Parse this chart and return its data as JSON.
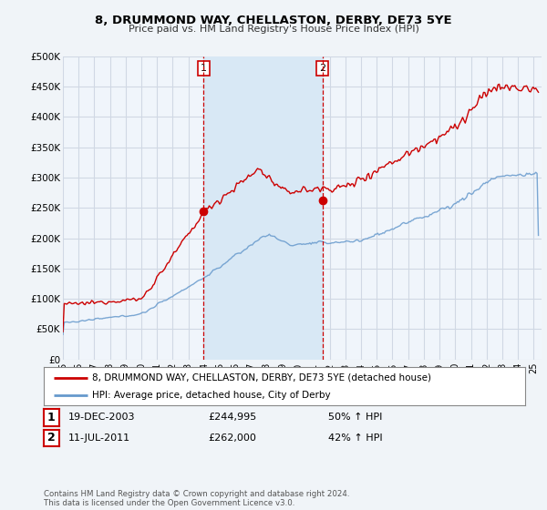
{
  "title": "8, DRUMMOND WAY, CHELLASTON, DERBY, DE73 5YE",
  "subtitle": "Price paid vs. HM Land Registry's House Price Index (HPI)",
  "ylabel_ticks": [
    "£0",
    "£50K",
    "£100K",
    "£150K",
    "£200K",
    "£250K",
    "£300K",
    "£350K",
    "£400K",
    "£450K",
    "£500K"
  ],
  "ytick_values": [
    0,
    50000,
    100000,
    150000,
    200000,
    250000,
    300000,
    350000,
    400000,
    450000,
    500000
  ],
  "ylim": [
    0,
    500000
  ],
  "background_color": "#f0f4f8",
  "plot_bg_color": "#f0f5fb",
  "grid_color": "#d0d8e4",
  "red_line_color": "#cc0000",
  "blue_line_color": "#6699cc",
  "span_color": "#d8e8f5",
  "marker1_date": 2003.97,
  "marker1_value": 244995,
  "marker1_label": "1",
  "marker2_date": 2011.54,
  "marker2_value": 262000,
  "marker2_label": "2",
  "legend_red_label": "8, DRUMMOND WAY, CHELLASTON, DERBY, DE73 5YE (detached house)",
  "legend_blue_label": "HPI: Average price, detached house, City of Derby",
  "table_rows": [
    [
      "1",
      "19-DEC-2003",
      "£244,995",
      "50% ↑ HPI"
    ],
    [
      "2",
      "11-JUL-2011",
      "£262,000",
      "42% ↑ HPI"
    ]
  ],
  "footnote": "Contains HM Land Registry data © Crown copyright and database right 2024.\nThis data is licensed under the Open Government Licence v3.0.",
  "xmin": 1995,
  "xmax": 2025.5
}
